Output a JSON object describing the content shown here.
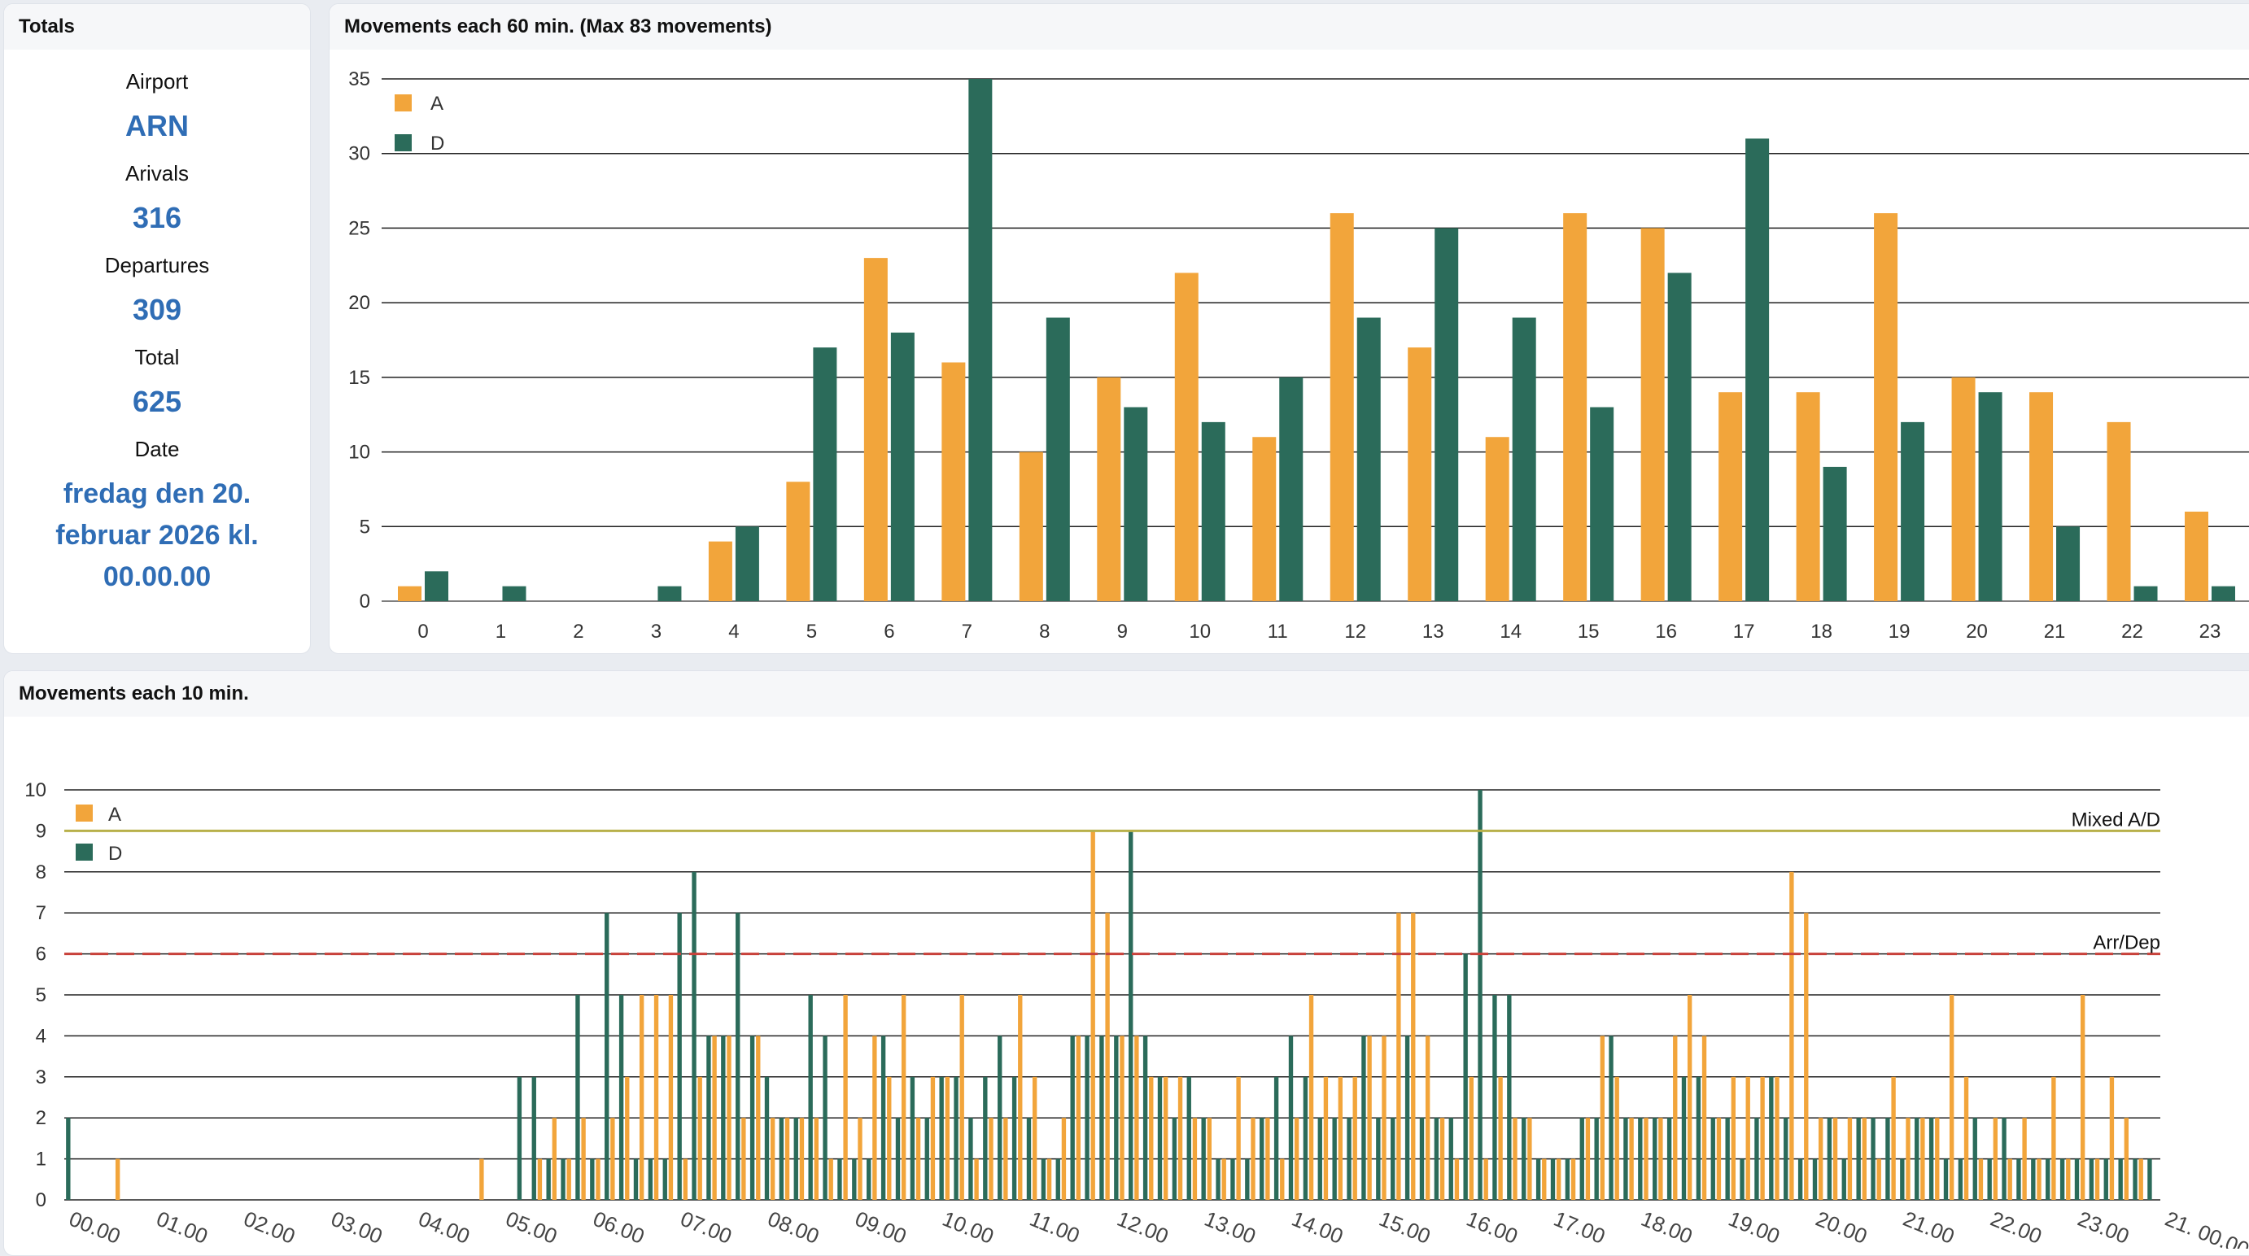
{
  "totals": {
    "title": "Totals",
    "airport_label": "Airport",
    "airport": "ARN",
    "arrivals_label": "Arivals",
    "arrivals": "316",
    "departures_label": "Departures",
    "departures": "309",
    "total_label": "Total",
    "total": "625",
    "date_label": "Date",
    "date_line1": "fredag den 20.",
    "date_line2": "februar 2026 kl.",
    "date_line3": "00.00.00"
  },
  "colors": {
    "arrivals": "#f2a53b",
    "departures": "#2b6b5a",
    "mixed_line": "#b8b04a",
    "arrdep_line": "#c8413a",
    "value_text": "#2f6db5"
  },
  "chart_data": [
    {
      "type": "bar",
      "title": "Movements each 60 min. (Max 83 movements)",
      "categories": [
        "0",
        "1",
        "2",
        "3",
        "4",
        "5",
        "6",
        "7",
        "8",
        "9",
        "10",
        "11",
        "12",
        "13",
        "14",
        "15",
        "16",
        "17",
        "18",
        "19",
        "20",
        "21",
        "22",
        "23"
      ],
      "series": [
        {
          "name": "A",
          "values": [
            1,
            0,
            0,
            0,
            4,
            8,
            23,
            16,
            10,
            15,
            22,
            11,
            26,
            17,
            11,
            26,
            25,
            14,
            14,
            26,
            15,
            14,
            12,
            6
          ]
        },
        {
          "name": "D",
          "values": [
            2,
            1,
            0,
            1,
            5,
            17,
            18,
            35,
            19,
            13,
            12,
            15,
            19,
            25,
            19,
            13,
            22,
            31,
            9,
            12,
            14,
            5,
            1,
            1
          ]
        }
      ],
      "yticks": [
        "0",
        "5",
        "10",
        "15",
        "20",
        "25",
        "30",
        "35"
      ],
      "ylim": [
        0,
        35
      ],
      "grid": true,
      "legend": "top-left"
    },
    {
      "type": "bar",
      "title": "Movements each 10 min.",
      "xticks": [
        "00.00",
        "01.00",
        "02.00",
        "03.00",
        "04.00",
        "05.00",
        "06.00",
        "07.00",
        "08.00",
        "09.00",
        "10.00",
        "11.00",
        "12.00",
        "13.00",
        "14.00",
        "15.00",
        "16.00",
        "17.00",
        "18.00",
        "19.00",
        "20.00",
        "21.00",
        "22.00",
        "23.00",
        "21. 00.00"
      ],
      "series": [
        {
          "name": "A",
          "values": [
            0,
            0,
            0,
            1,
            0,
            0,
            0,
            0,
            0,
            0,
            0,
            0,
            0,
            0,
            0,
            0,
            0,
            0,
            0,
            0,
            0,
            0,
            0,
            0,
            0,
            0,
            0,
            0,
            1,
            0,
            0,
            0,
            1,
            2,
            1,
            2,
            1,
            2,
            3,
            5,
            5,
            5,
            1,
            3,
            4,
            4,
            2,
            4,
            2,
            2,
            2,
            2,
            1,
            5,
            2,
            4,
            3,
            5,
            2,
            3,
            3,
            5,
            1,
            2,
            2,
            5,
            3,
            1,
            2,
            4,
            9,
            7,
            4,
            4,
            3,
            3,
            3,
            2,
            2,
            1,
            3,
            2,
            2,
            1,
            2,
            5,
            3,
            3,
            3,
            4,
            4,
            7,
            7,
            4,
            2,
            1,
            3,
            1,
            3,
            2,
            2,
            1,
            1,
            1,
            2,
            4,
            3,
            2,
            2,
            2,
            4,
            5,
            4,
            2,
            3,
            3,
            3,
            3,
            8,
            7,
            2,
            2,
            2,
            2,
            1,
            3,
            2,
            2,
            2,
            5,
            3,
            1,
            2,
            1,
            2,
            1,
            3,
            1,
            5,
            1,
            3,
            2,
            1,
            0
          ]
        },
        {
          "name": "D",
          "values": [
            2,
            0,
            0,
            0,
            0,
            0,
            0,
            0,
            0,
            0,
            0,
            0,
            0,
            0,
            0,
            0,
            0,
            0,
            0,
            0,
            0,
            0,
            0,
            0,
            0,
            0,
            0,
            0,
            0,
            0,
            0,
            3,
            3,
            1,
            1,
            5,
            1,
            7,
            5,
            1,
            1,
            1,
            7,
            8,
            4,
            4,
            7,
            4,
            3,
            2,
            2,
            5,
            4,
            1,
            1,
            1,
            4,
            2,
            3,
            2,
            3,
            3,
            2,
            3,
            4,
            3,
            2,
            1,
            1,
            4,
            4,
            4,
            4,
            9,
            4,
            3,
            2,
            3,
            2,
            1,
            1,
            1,
            2,
            3,
            4,
            3,
            2,
            2,
            2,
            4,
            2,
            2,
            4,
            2,
            2,
            2,
            6,
            10,
            5,
            5,
            2,
            1,
            1,
            1,
            2,
            2,
            4,
            2,
            2,
            2,
            2,
            3,
            3,
            2,
            2,
            1,
            2,
            3,
            2,
            1,
            1,
            2,
            1,
            2,
            2,
            2,
            1,
            2,
            2,
            1,
            1,
            2,
            1,
            2,
            1,
            1,
            1,
            1,
            1,
            1,
            1,
            1,
            1,
            1
          ]
        }
      ],
      "yticks": [
        "0",
        "1",
        "2",
        "3",
        "4",
        "5",
        "6",
        "7",
        "8",
        "9",
        "10"
      ],
      "ylim": [
        0,
        10
      ],
      "grid": true,
      "legend": "top-left",
      "reference_lines": [
        {
          "label": "Mixed A/D",
          "value": 9,
          "style": "solid"
        },
        {
          "label": "Arr/Dep",
          "value": 6,
          "style": "dashed"
        }
      ]
    }
  ]
}
